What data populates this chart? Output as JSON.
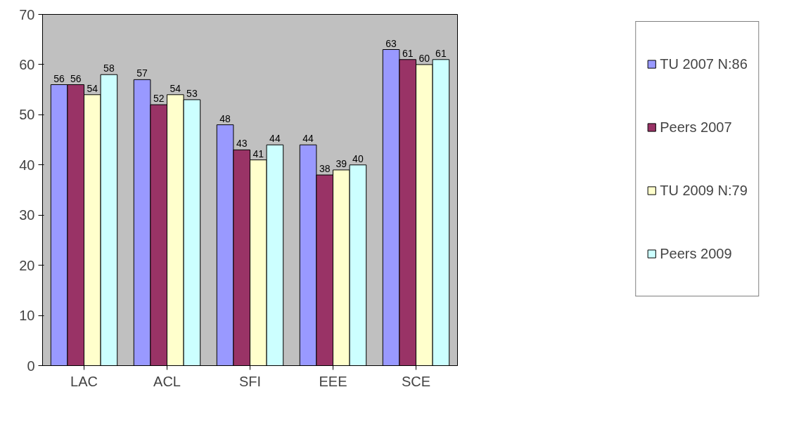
{
  "chart_data": {
    "type": "bar",
    "categories": [
      "LAC",
      "ACL",
      "SFI",
      "EEE",
      "SCE"
    ],
    "series": [
      {
        "name": "TU 2007 N:86",
        "color": "#9999ff",
        "values": [
          56,
          57,
          48,
          44,
          63
        ]
      },
      {
        "name": "Peers 2007",
        "color": "#993366",
        "values": [
          56,
          52,
          43,
          38,
          61
        ]
      },
      {
        "name": "TU 2009 N:79",
        "color": "#ffffcc",
        "values": [
          54,
          54,
          41,
          39,
          60
        ]
      },
      {
        "name": "Peers 2009",
        "color": "#ccffff",
        "values": [
          58,
          53,
          44,
          40,
          61
        ]
      }
    ],
    "ylim": [
      0,
      70
    ],
    "yticks": [
      0,
      10,
      20,
      30,
      40,
      50,
      60,
      70
    ],
    "grid": false,
    "legend": "right",
    "data_labels": true
  }
}
